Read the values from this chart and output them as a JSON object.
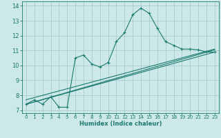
{
  "xlabel": "Humidex (Indice chaleur)",
  "bg_color": "#cce8e8",
  "grid_color": "#aacccc",
  "line_color": "#1a7a6e",
  "xlim": [
    -0.5,
    23.5
  ],
  "ylim": [
    6.8,
    14.3
  ],
  "xticks": [
    0,
    1,
    2,
    3,
    4,
    5,
    6,
    7,
    8,
    9,
    10,
    11,
    12,
    13,
    14,
    15,
    16,
    17,
    18,
    19,
    20,
    21,
    22,
    23
  ],
  "yticks": [
    7,
    8,
    9,
    10,
    11,
    12,
    13,
    14
  ],
  "main_x": [
    0,
    1,
    2,
    3,
    4,
    5,
    6,
    7,
    8,
    9,
    10,
    11,
    12,
    13,
    14,
    15,
    16,
    17,
    18,
    19,
    20,
    21,
    22,
    23
  ],
  "main_y": [
    7.4,
    7.7,
    7.4,
    7.9,
    7.2,
    7.2,
    10.5,
    10.7,
    10.1,
    9.9,
    10.2,
    11.6,
    12.2,
    13.4,
    13.85,
    13.5,
    12.5,
    11.6,
    11.35,
    11.1,
    11.1,
    11.05,
    10.9,
    10.9
  ],
  "line2_x": [
    0,
    23
  ],
  "line2_y": [
    7.4,
    11.05
  ],
  "line3_x": [
    0,
    23
  ],
  "line3_y": [
    7.7,
    11.1
  ],
  "line4_x": [
    0,
    23
  ],
  "line4_y": [
    7.4,
    10.9
  ]
}
